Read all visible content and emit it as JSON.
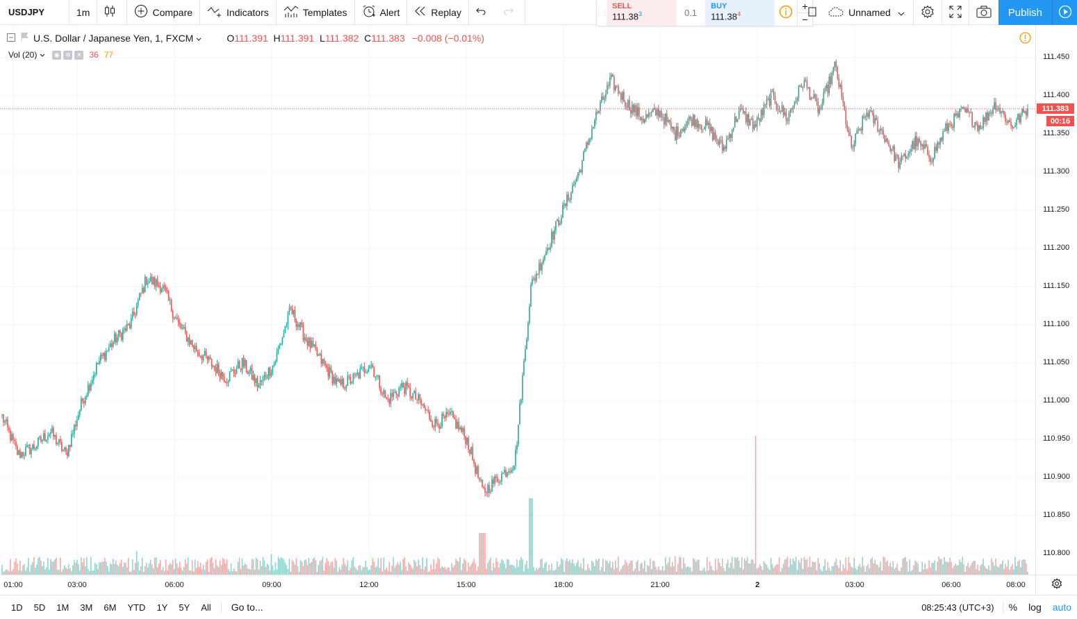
{
  "toolbar": {
    "symbol": "USDJPY",
    "interval": "1m",
    "compare": "Compare",
    "indicators": "Indicators",
    "templates": "Templates",
    "alert": "Alert",
    "replay": "Replay"
  },
  "trade": {
    "sell_label": "SELL",
    "sell_price": "111.38",
    "sell_sup": "3",
    "qty": "0.1",
    "buy_label": "BUY",
    "buy_price": "111.38",
    "buy_sup": "4",
    "plus": "+",
    "minus": "−"
  },
  "right_tools": {
    "layout_name": "Unnamed",
    "publish": "Publish"
  },
  "legend": {
    "symbol_desc": "U.S. Dollar / Japanese Yen, 1, FXCM",
    "o_label": "O",
    "o": "111.391",
    "h_label": "H",
    "h": "111.391",
    "l_label": "L",
    "l": "111.382",
    "c_label": "C",
    "c": "111.383",
    "change": "−0.008 (−0.01%)"
  },
  "volume_legend": {
    "name": "Vol (20)",
    "value1": "36",
    "value2": "77"
  },
  "price_axis": {
    "ticks": [
      "111.450",
      "111.400",
      "111.350",
      "111.300",
      "111.250",
      "111.200",
      "111.150",
      "111.100",
      "111.050",
      "111.000",
      "110.950",
      "110.900",
      "110.850",
      "110.800"
    ],
    "last_price": "111.383",
    "countdown": "00:16"
  },
  "time_axis": {
    "ticks": [
      "01:00",
      "03:00",
      "06:00",
      "09:00",
      "12:00",
      "15:00",
      "18:00",
      "21:00",
      "2",
      "03:00",
      "06:00",
      "08:00"
    ]
  },
  "chart_data": {
    "type": "candlestick",
    "symbol": "USDJPY",
    "interval": "1",
    "ylim": [
      110.78,
      111.47
    ],
    "last_price": 111.383,
    "x": [
      "00:30",
      "01:00",
      "01:30",
      "02:00",
      "02:30",
      "03:00",
      "03:30",
      "04:00",
      "04:30",
      "05:00",
      "05:30",
      "06:00",
      "06:30",
      "07:00",
      "07:30",
      "08:00",
      "08:30",
      "09:00",
      "09:30",
      "10:00",
      "10:30",
      "11:00",
      "11:30",
      "12:00",
      "12:30",
      "13:00",
      "13:30",
      "14:00",
      "14:30",
      "15:00",
      "15:30",
      "16:00",
      "16:30",
      "17:00",
      "17:30",
      "18:00",
      "18:30",
      "19:00",
      "19:30",
      "20:00",
      "20:30",
      "21:00",
      "21:30",
      "22:00",
      "22:30",
      "23:00",
      "23:30",
      "00:00",
      "00:30",
      "01:00",
      "01:30",
      "02:00",
      "02:30",
      "03:00",
      "03:30",
      "04:00",
      "04:30",
      "05:00",
      "05:30",
      "06:00",
      "06:30",
      "07:00",
      "07:30",
      "08:00",
      "08:25"
    ],
    "close": [
      110.98,
      110.93,
      110.94,
      110.96,
      110.93,
      111.0,
      111.05,
      111.08,
      111.1,
      111.16,
      111.15,
      111.1,
      111.07,
      111.05,
      111.03,
      111.05,
      111.02,
      111.05,
      111.12,
      111.08,
      111.05,
      111.02,
      111.03,
      111.05,
      111.0,
      111.02,
      111.0,
      110.97,
      110.98,
      110.95,
      110.88,
      110.9,
      110.92,
      111.15,
      111.2,
      111.25,
      111.3,
      111.37,
      111.42,
      111.39,
      111.37,
      111.38,
      111.35,
      111.37,
      111.36,
      111.33,
      111.38,
      111.36,
      111.4,
      111.37,
      111.42,
      111.38,
      111.44,
      111.33,
      111.38,
      111.35,
      111.31,
      111.34,
      111.32,
      111.36,
      111.38,
      111.36,
      111.39,
      111.36,
      111.383
    ]
  }
}
